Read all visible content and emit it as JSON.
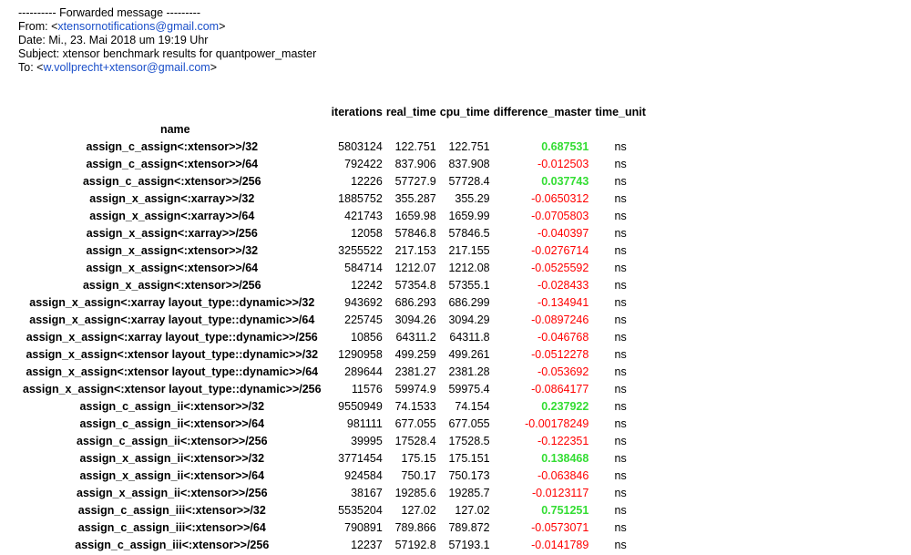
{
  "email": {
    "forwarded": "---------- Forwarded message ---------",
    "from_label": "From: <",
    "from_email": "xtensornotifications@gmail.com",
    "from_end": ">",
    "date": "Date: Mi., 23. Mai 2018 um 19:19 Uhr",
    "subject": "Subject: xtensor benchmark results for quantpower_master",
    "to_label": "To: <",
    "to_email": "w.vollprecht+xtensor@gmail.com",
    "to_end": ">"
  },
  "table": {
    "columns": [
      "iterations",
      "real_time",
      "cpu_time",
      "difference_master",
      "time_unit"
    ],
    "name_header": "name",
    "rows": [
      {
        "name": "assign_c_assign<:xtensor>>/32",
        "iterations": "5803124",
        "real_time": "122.751",
        "cpu_time": "122.751",
        "diff": "0.687531",
        "unit": "ns",
        "positive": true
      },
      {
        "name": "assign_c_assign<:xtensor>>/64",
        "iterations": "792422",
        "real_time": "837.906",
        "cpu_time": "837.908",
        "diff": "-0.012503",
        "unit": "ns",
        "positive": false
      },
      {
        "name": "assign_c_assign<:xtensor>>/256",
        "iterations": "12226",
        "real_time": "57727.9",
        "cpu_time": "57728.4",
        "diff": "0.037743",
        "unit": "ns",
        "positive": true
      },
      {
        "name": "assign_x_assign<:xarray>>/32",
        "iterations": "1885752",
        "real_time": "355.287",
        "cpu_time": "355.29",
        "diff": "-0.0650312",
        "unit": "ns",
        "positive": false
      },
      {
        "name": "assign_x_assign<:xarray>>/64",
        "iterations": "421743",
        "real_time": "1659.98",
        "cpu_time": "1659.99",
        "diff": "-0.0705803",
        "unit": "ns",
        "positive": false
      },
      {
        "name": "assign_x_assign<:xarray>>/256",
        "iterations": "12058",
        "real_time": "57846.8",
        "cpu_time": "57846.5",
        "diff": "-0.040397",
        "unit": "ns",
        "positive": false
      },
      {
        "name": "assign_x_assign<:xtensor>>/32",
        "iterations": "3255522",
        "real_time": "217.153",
        "cpu_time": "217.155",
        "diff": "-0.0276714",
        "unit": "ns",
        "positive": false
      },
      {
        "name": "assign_x_assign<:xtensor>>/64",
        "iterations": "584714",
        "real_time": "1212.07",
        "cpu_time": "1212.08",
        "diff": "-0.0525592",
        "unit": "ns",
        "positive": false
      },
      {
        "name": "assign_x_assign<:xtensor>>/256",
        "iterations": "12242",
        "real_time": "57354.8",
        "cpu_time": "57355.1",
        "diff": "-0.028433",
        "unit": "ns",
        "positive": false
      },
      {
        "name": "assign_x_assign<:xarray layout_type::dynamic>>/32",
        "iterations": "943692",
        "real_time": "686.293",
        "cpu_time": "686.299",
        "diff": "-0.134941",
        "unit": "ns",
        "positive": false
      },
      {
        "name": "assign_x_assign<:xarray layout_type::dynamic>>/64",
        "iterations": "225745",
        "real_time": "3094.26",
        "cpu_time": "3094.29",
        "diff": "-0.0897246",
        "unit": "ns",
        "positive": false
      },
      {
        "name": "assign_x_assign<:xarray layout_type::dynamic>>/256",
        "iterations": "10856",
        "real_time": "64311.2",
        "cpu_time": "64311.8",
        "diff": "-0.046768",
        "unit": "ns",
        "positive": false
      },
      {
        "name": "assign_x_assign<:xtensor layout_type::dynamic>>/32",
        "iterations": "1290958",
        "real_time": "499.259",
        "cpu_time": "499.261",
        "diff": "-0.0512278",
        "unit": "ns",
        "positive": false
      },
      {
        "name": "assign_x_assign<:xtensor layout_type::dynamic>>/64",
        "iterations": "289644",
        "real_time": "2381.27",
        "cpu_time": "2381.28",
        "diff": "-0.053692",
        "unit": "ns",
        "positive": false
      },
      {
        "name": "assign_x_assign<:xtensor layout_type::dynamic>>/256",
        "iterations": "11576",
        "real_time": "59974.9",
        "cpu_time": "59975.4",
        "diff": "-0.0864177",
        "unit": "ns",
        "positive": false
      },
      {
        "name": "assign_c_assign_ii<:xtensor>>/32",
        "iterations": "9550949",
        "real_time": "74.1533",
        "cpu_time": "74.154",
        "diff": "0.237922",
        "unit": "ns",
        "positive": true
      },
      {
        "name": "assign_c_assign_ii<:xtensor>>/64",
        "iterations": "981111",
        "real_time": "677.055",
        "cpu_time": "677.055",
        "diff": "-0.00178249",
        "unit": "ns",
        "positive": false
      },
      {
        "name": "assign_c_assign_ii<:xtensor>>/256",
        "iterations": "39995",
        "real_time": "17528.4",
        "cpu_time": "17528.5",
        "diff": "-0.122351",
        "unit": "ns",
        "positive": false
      },
      {
        "name": "assign_x_assign_ii<:xtensor>>/32",
        "iterations": "3771454",
        "real_time": "175.15",
        "cpu_time": "175.151",
        "diff": "0.138468",
        "unit": "ns",
        "positive": true
      },
      {
        "name": "assign_x_assign_ii<:xtensor>>/64",
        "iterations": "924584",
        "real_time": "750.17",
        "cpu_time": "750.173",
        "diff": "-0.063846",
        "unit": "ns",
        "positive": false
      },
      {
        "name": "assign_x_assign_ii<:xtensor>>/256",
        "iterations": "38167",
        "real_time": "19285.6",
        "cpu_time": "19285.7",
        "diff": "-0.0123117",
        "unit": "ns",
        "positive": false
      },
      {
        "name": "assign_c_assign_iii<:xtensor>>/32",
        "iterations": "5535204",
        "real_time": "127.02",
        "cpu_time": "127.02",
        "diff": "0.751251",
        "unit": "ns",
        "positive": true
      },
      {
        "name": "assign_c_assign_iii<:xtensor>>/64",
        "iterations": "790891",
        "real_time": "789.866",
        "cpu_time": "789.872",
        "diff": "-0.0573071",
        "unit": "ns",
        "positive": false
      },
      {
        "name": "assign_c_assign_iii<:xtensor>>/256",
        "iterations": "12237",
        "real_time": "57192.8",
        "cpu_time": "57193.1",
        "diff": "-0.0141789",
        "unit": "ns",
        "positive": false
      }
    ]
  },
  "colors": {
    "positive": "#33dd33",
    "negative": "#ff0000",
    "link": "#1a4fc9"
  }
}
